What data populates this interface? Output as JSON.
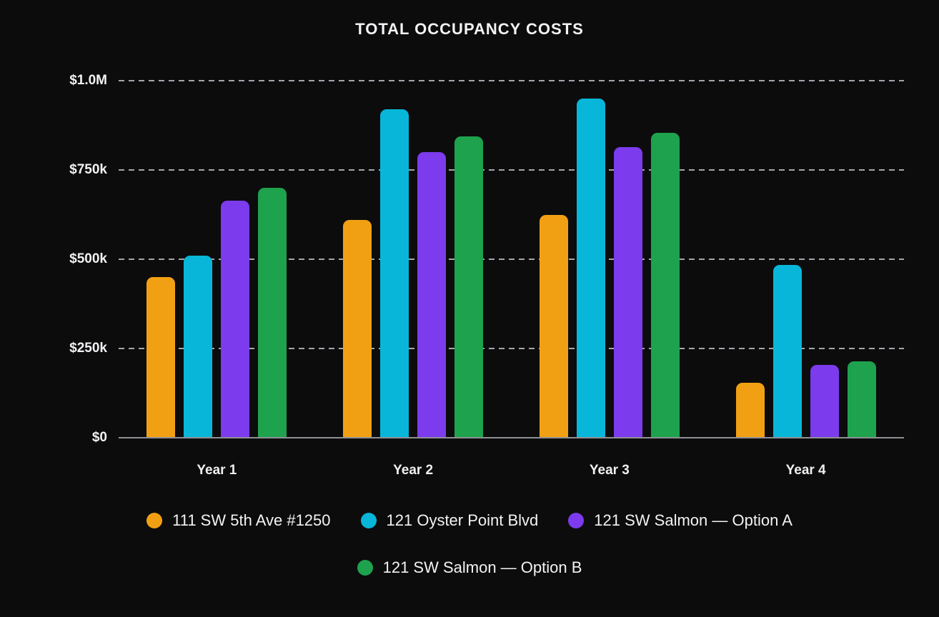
{
  "title": "TOTAL OCCUPANCY COSTS",
  "colors": {
    "background": "#0c0c0d",
    "text": "#f4f4f6",
    "axis_line": "#8e9094",
    "gridline": "#caccd1",
    "series_orange": "#f2a013",
    "series_cyan": "#08b6d9",
    "series_purple": "#7c3bec",
    "series_green": "#1ea24d"
  },
  "chart_data": {
    "type": "bar",
    "title": "TOTAL OCCUPANCY COSTS",
    "categories": [
      "Year 1",
      "Year 2",
      "Year 3",
      "Year 4"
    ],
    "series": [
      {
        "name": "111 SW 5th Ave #1250",
        "color": "#f2a013",
        "values": [
          450000,
          610000,
          625000,
          155000
        ]
      },
      {
        "name": "121 Oyster Point Blvd",
        "color": "#08b6d9",
        "values": [
          510000,
          920000,
          950000,
          485000
        ]
      },
      {
        "name": "121 SW Salmon — Option A",
        "color": "#7c3bec",
        "values": [
          665000,
          800000,
          815000,
          205000
        ]
      },
      {
        "name": "121 SW Salmon — Option B",
        "color": "#1ea24d",
        "values": [
          700000,
          845000,
          855000,
          215000
        ]
      }
    ],
    "y_ticks": [
      "$0",
      "$250k",
      "$500k",
      "$750k",
      "$1.0M"
    ],
    "y_tick_values": [
      0,
      250000,
      500000,
      750000,
      1000000
    ],
    "ylim": [
      0,
      1000000
    ],
    "xlabel": "",
    "ylabel": "",
    "grid": "horizontal-dashed",
    "legend_position": "bottom",
    "legend_rows": [
      3,
      1
    ]
  }
}
